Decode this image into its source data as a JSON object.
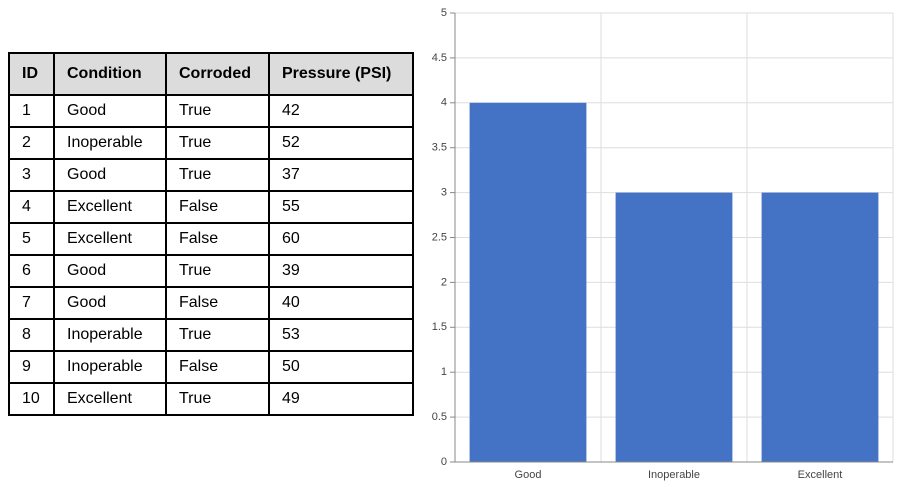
{
  "table": {
    "header": [
      "ID",
      "Condition",
      "Corroded",
      "Pressure (PSI)"
    ],
    "rows": [
      [
        1,
        "Good",
        "True",
        42
      ],
      [
        2,
        "Inoperable",
        "True",
        52
      ],
      [
        3,
        "Good",
        "True",
        37
      ],
      [
        4,
        "Excellent",
        "False",
        55
      ],
      [
        5,
        "Excellent",
        "False",
        60
      ],
      [
        6,
        "Good",
        "True",
        39
      ],
      [
        7,
        "Good",
        "False",
        40
      ],
      [
        8,
        "Inoperable",
        "True",
        53
      ],
      [
        9,
        "Inoperable",
        "False",
        50
      ],
      [
        10,
        "Excellent",
        "True",
        49
      ]
    ]
  },
  "chart_data": {
    "type": "bar",
    "categories": [
      "Good",
      "Inoperable",
      "Excellent"
    ],
    "values": [
      4,
      3,
      3
    ],
    "color": "#4472c4",
    "ylim": [
      0,
      5
    ],
    "yticks": [
      0,
      0.5,
      1,
      1.5,
      2,
      2.5,
      3,
      3.5,
      4,
      4.5,
      5
    ],
    "grid": true
  }
}
